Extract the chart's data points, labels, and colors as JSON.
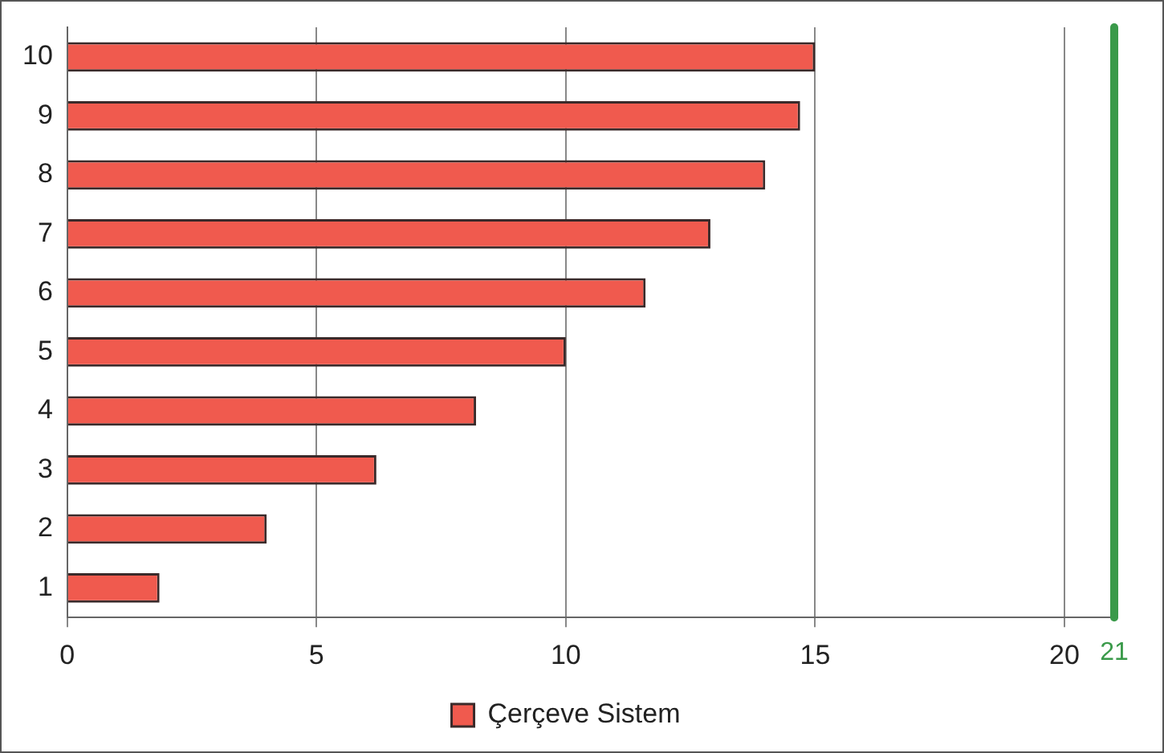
{
  "chart_data": {
    "type": "bar",
    "orientation": "horizontal",
    "categories": [
      "10",
      "9",
      "8",
      "7",
      "6",
      "5",
      "4",
      "3",
      "2",
      "1"
    ],
    "series": [
      {
        "name": "Çerçeve Sistem",
        "color": "#f05a4e",
        "values": [
          15.0,
          14.7,
          14.0,
          12.9,
          11.6,
          10.0,
          8.2,
          6.2,
          4.0,
          1.85
        ]
      }
    ],
    "xlim": [
      0,
      21
    ],
    "xticks": [
      0,
      5,
      10,
      15,
      20
    ],
    "ref_lines": [
      {
        "axis": "x",
        "value": 21,
        "label": "21",
        "color": "#3a9a4a"
      }
    ],
    "grid": "x",
    "legend": "bottom"
  }
}
